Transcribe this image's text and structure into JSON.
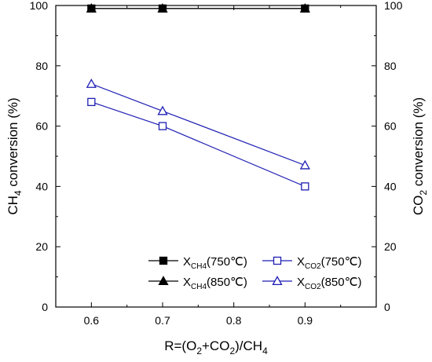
{
  "chart_data": {
    "type": "line",
    "x": [
      0.6,
      0.7,
      0.9
    ],
    "xlim": [
      0.55,
      1.0
    ],
    "ylim": [
      0,
      100
    ],
    "y2lim": [
      0,
      100
    ],
    "x_ticks": [
      "0.6",
      "0.7",
      "0.8",
      "0.9"
    ],
    "y_ticks": [
      "0",
      "20",
      "40",
      "60",
      "80",
      "100"
    ],
    "y2_ticks": [
      "0",
      "20",
      "40",
      "60",
      "80",
      "100"
    ],
    "xlabel": {
      "main": "R=(O",
      "s1": "2",
      "mid": "+CO",
      "s2": "2",
      "end": ")/CH",
      "s3": "4"
    },
    "ylabel": {
      "main": "CH",
      "sub": "4",
      "rest": " conversion (%)"
    },
    "y2label": {
      "main": "CO",
      "sub": "2",
      "rest": " conversion (%)"
    },
    "grid": false,
    "legend_position": "bottom-right",
    "series": [
      {
        "name": "X_CH4(750℃)",
        "label_main": "X",
        "label_sub": "CH4",
        "label_rest": "(750℃)",
        "values": [
          99,
          99,
          99
        ],
        "color": "#000000",
        "marker": "square-filled"
      },
      {
        "name": "X_CH4(850℃)",
        "label_main": "X",
        "label_sub": "CH4",
        "label_rest": "(850℃)",
        "values": [
          99,
          99,
          99
        ],
        "color": "#000000",
        "marker": "triangle-filled"
      },
      {
        "name": "X_CO2(750℃)",
        "label_main": "X",
        "label_sub": "CO2",
        "label_rest": "(750℃)",
        "values": [
          68,
          60,
          40
        ],
        "color": "#1f1fb4",
        "marker": "square-open"
      },
      {
        "name": "X_CO2(850℃)",
        "label_main": "X",
        "label_sub": "CO2",
        "label_rest": "(850℃)",
        "values": [
          74,
          65,
          47
        ],
        "color": "#1f1fb4",
        "marker": "triangle-open"
      }
    ]
  }
}
